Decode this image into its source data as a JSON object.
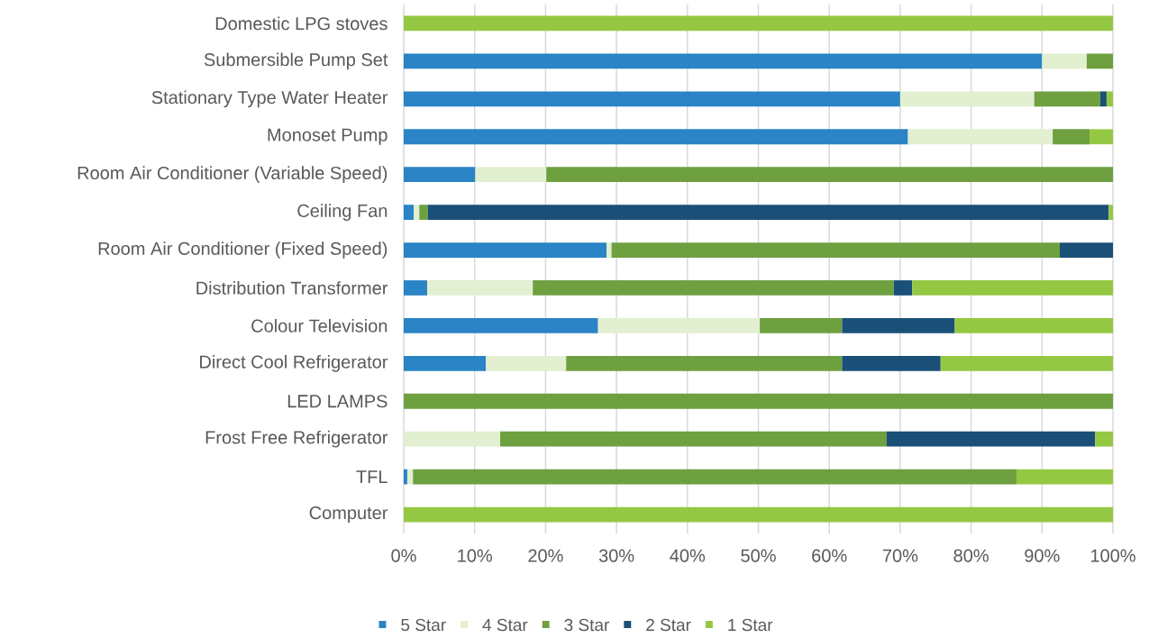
{
  "chart_data": {
    "type": "bar",
    "orientation": "horizontal",
    "stacked": true,
    "categories": [
      "Domestic LPG stoves",
      "Submersible Pump Set",
      "Stationary Type Water Heater",
      "Monoset Pump",
      "Room Air Conditioner (Variable Speed)",
      "Ceiling Fan",
      "Room Air Conditioner (Fixed Speed)",
      "Distribution Transformer",
      "Colour Television",
      "Direct Cool Refrigerator",
      "LED LAMPS",
      "Frost Free Refrigerator",
      "TFL",
      "Computer"
    ],
    "series": [
      {
        "name": "5 Star",
        "color": "#2a84c6",
        "values": [
          null,
          90,
          70,
          71.1,
          10.1,
          1.4,
          28.6,
          3.3,
          27.4,
          11.6,
          null,
          null,
          0.5,
          null
        ]
      },
      {
        "name": "4 Star",
        "color": "#e2efd0",
        "values": [
          null,
          6.3,
          18.9,
          20.4,
          10,
          0.8,
          0.7,
          14.9,
          22.8,
          11.3,
          null,
          13.6,
          0.8,
          null
        ]
      },
      {
        "name": "3 Star",
        "color": "#6ea040",
        "values": [
          null,
          3.7,
          9.3,
          5.2,
          79.9,
          1.2,
          63.2,
          50.9,
          11.6,
          38.9,
          100,
          54.5,
          85.1,
          null
        ]
      },
      {
        "name": "2 Star",
        "color": "#1a5078",
        "values": [
          null,
          null,
          0.9,
          null,
          null,
          96,
          7.5,
          2.6,
          15.9,
          13.9,
          null,
          29.4,
          null,
          null
        ]
      },
      {
        "name": "1 Star",
        "color": "#95c842",
        "values": [
          100,
          null,
          0.9,
          3.3,
          null,
          0.6,
          null,
          28.3,
          22.3,
          24.3,
          null,
          2.5,
          13.6,
          100
        ]
      }
    ],
    "xlim": [
      0,
      100
    ],
    "xticks": [
      {
        "value": 0,
        "label": "0%"
      },
      {
        "value": 10,
        "label": "10%"
      },
      {
        "value": 20,
        "label": "20%"
      },
      {
        "value": 30,
        "label": "30%"
      },
      {
        "value": 40,
        "label": "40%"
      },
      {
        "value": 50,
        "label": "50%"
      },
      {
        "value": 60,
        "label": "60%"
      },
      {
        "value": 70,
        "label": "70%"
      },
      {
        "value": 80,
        "label": "80%"
      },
      {
        "value": 90,
        "label": "90%"
      },
      {
        "value": 100,
        "label": "100%"
      }
    ],
    "grid": "x",
    "legend": "bottom"
  }
}
